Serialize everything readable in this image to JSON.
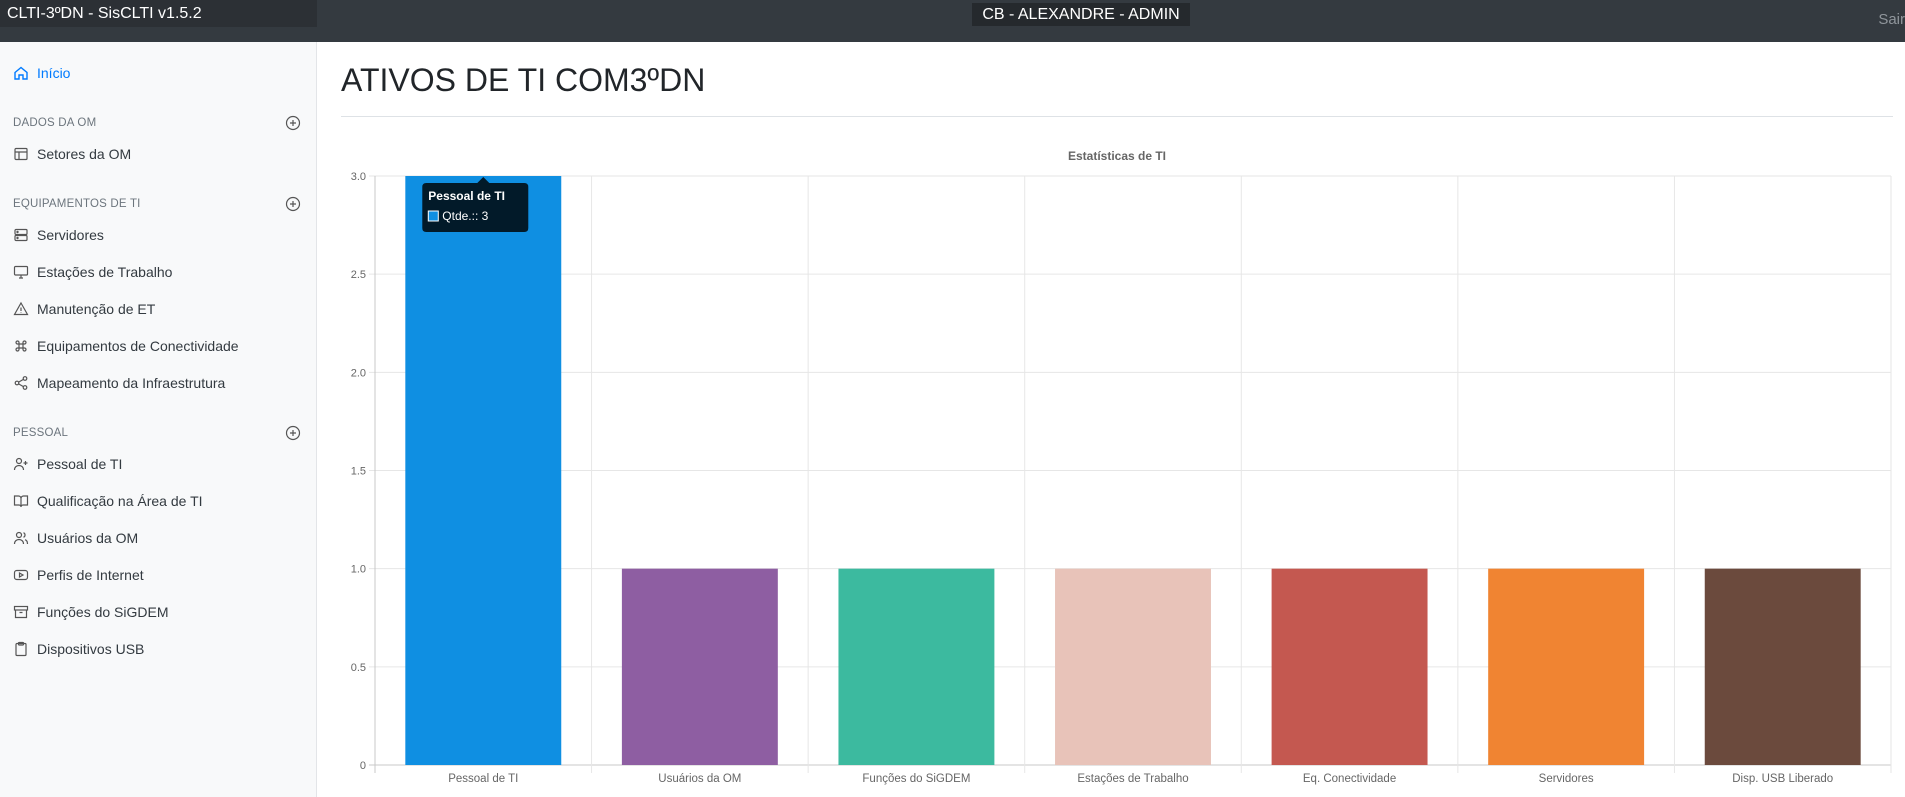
{
  "app": {
    "brand": "CLTI-3ºDN - SisCLTI v1.5.2",
    "user": "CB - ALEXANDRE - ADMIN",
    "signout": "Sair"
  },
  "sidebar": {
    "home": "Início",
    "sections": [
      {
        "title": "DADOS DA OM",
        "items": [
          "Setores da OM"
        ]
      },
      {
        "title": "EQUIPAMENTOS DE TI",
        "items": [
          "Servidores",
          "Estações de Trabalho",
          "Manutenção de ET",
          "Equipamentos de Conectividade",
          "Mapeamento da Infraestrutura"
        ]
      },
      {
        "title": "PESSOAL",
        "items": [
          "Pessoal de TI",
          "Qualificação na Área de TI",
          "Usuários da OM",
          "Perfis de Internet",
          "Funções do SiGDEM",
          "Dispositivos USB"
        ]
      }
    ]
  },
  "main": {
    "title": "ATIVOS DE TI COM3ºDN"
  },
  "chart_data": {
    "type": "bar",
    "title": "Estatísticas de TI",
    "categories": [
      "Pessoal de TI",
      "Usuários da OM",
      "Funções do SiGDEM",
      "Estações de Trabalho",
      "Eq. Conectividade",
      "Servidores",
      "Disp. USB Liberado"
    ],
    "series": [
      {
        "name": "Qtde.:",
        "values": [
          3,
          1,
          1,
          1,
          1,
          1,
          1
        ]
      }
    ],
    "colors": [
      "#0f8fe2",
      "#8e5ea2",
      "#3cba9f",
      "#e8c3b9",
      "#c45850",
      "#f08432",
      "#6b4a3d"
    ],
    "ylim": [
      0,
      3
    ],
    "yticks": [
      "0",
      "0.5",
      "1.0",
      "1.5",
      "2.0",
      "2.5",
      "3.0"
    ],
    "grid": true,
    "tooltip": {
      "title": "Pessoal de TI",
      "label": "Qtde.:: 3"
    }
  }
}
